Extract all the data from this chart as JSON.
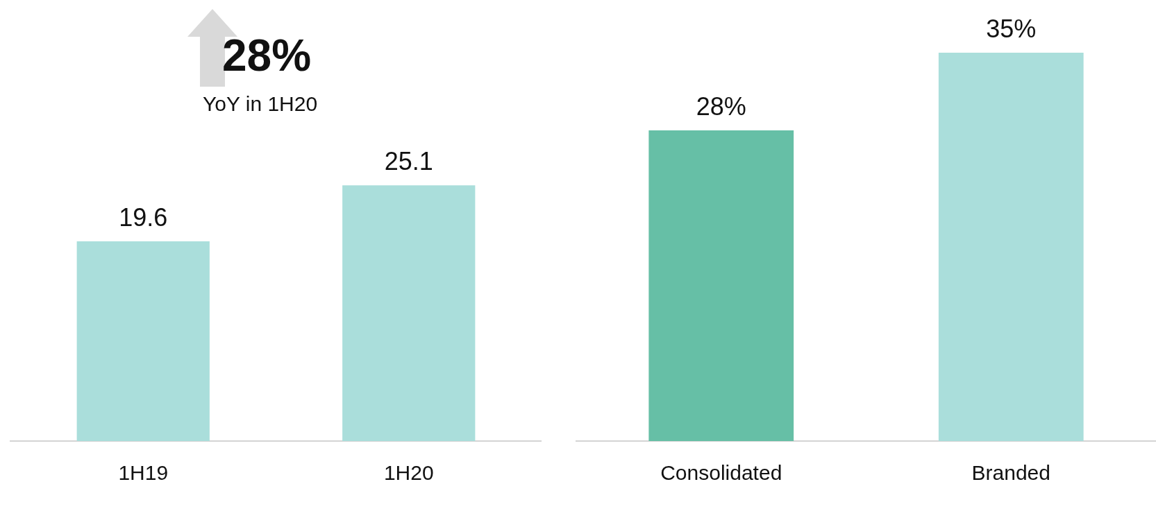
{
  "chart_data": [
    {
      "type": "bar",
      "categories": [
        "1H19",
        "1H20"
      ],
      "values": [
        19.6,
        25.1
      ],
      "color": "#aadedb",
      "data_labels": true,
      "annotations": [
        "28%",
        "YoY in 1H20"
      ]
    },
    {
      "type": "bar",
      "categories": [
        "Consolidated",
        "Branded"
      ],
      "values": [
        28,
        35
      ],
      "colors": [
        "#66bfa6",
        "#aadedb"
      ],
      "value_labels": [
        "28%",
        "35%"
      ]
    }
  ]
}
